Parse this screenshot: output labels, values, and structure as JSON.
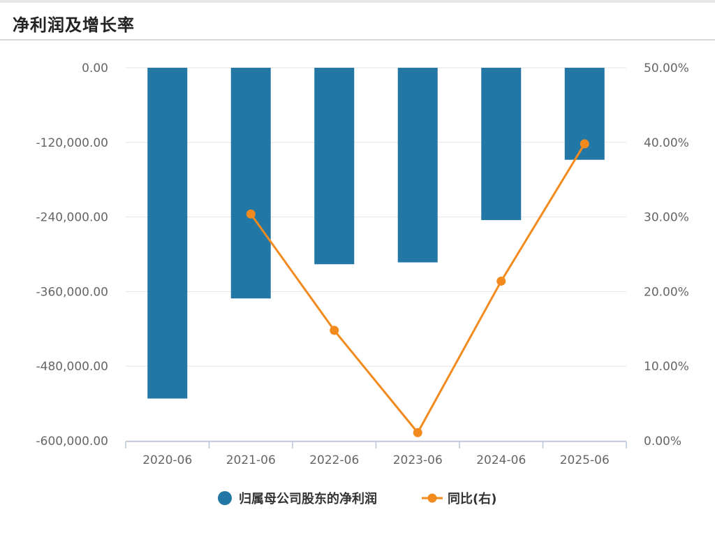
{
  "header": {
    "title": "净利润及增长率"
  },
  "colors": {
    "bar": "#2277a4",
    "line": "#f28a1e",
    "grid": "#e3e3e3",
    "axis": "#b8c4d8"
  },
  "chart_data": {
    "type": "bar+line",
    "categories": [
      "2020-06",
      "2021-06",
      "2022-06",
      "2023-06",
      "2024-06",
      "2025-06"
    ],
    "series": [
      {
        "name": "归属母公司股东的净利润",
        "type": "bar",
        "axis": "left",
        "values": [
          -532000,
          -371000,
          -316000,
          -313000,
          -245000,
          -148000
        ]
      },
      {
        "name": "同比(右)",
        "type": "line",
        "axis": "right",
        "values": [
          null,
          30.4,
          14.8,
          1.1,
          21.4,
          39.8
        ]
      }
    ],
    "left_axis": {
      "ticks": [
        "0.00",
        "-120,000.00",
        "-240,000.00",
        "-360,000.00",
        "-480,000.00",
        "-600,000.00"
      ],
      "range": [
        -600000,
        0
      ]
    },
    "right_axis": {
      "ticks": [
        "50.00%",
        "40.00%",
        "30.00%",
        "20.00%",
        "10.00%",
        "0.00%"
      ],
      "range": [
        0,
        50
      ]
    },
    "grid": true,
    "legend": "bottom-center"
  }
}
